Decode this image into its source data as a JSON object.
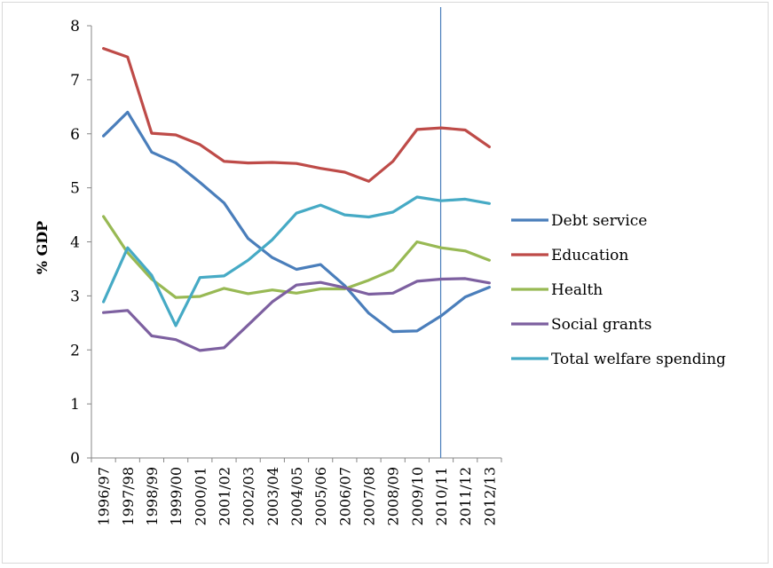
{
  "chart_data": {
    "type": "line",
    "ylabel": "% GDP",
    "xlabel": "",
    "ylim": [
      0,
      8
    ],
    "yticks": [
      "0",
      "1",
      "2",
      "3",
      "4",
      "5",
      "6",
      "7",
      "8"
    ],
    "categories": [
      "1996/97",
      "1997/98",
      "1998/99",
      "1999/00",
      "2000/01",
      "2001/02",
      "2002/03",
      "2003/04",
      "2004/05",
      "2005/06",
      "2006/07",
      "2007/08",
      "2008/09",
      "2009/10",
      "2010/11",
      "2011/12",
      "2012/13"
    ],
    "series": [
      {
        "name": "Debt service",
        "color": "#4a7ebb",
        "values": [
          5.96,
          6.4,
          5.66,
          5.46,
          5.1,
          4.72,
          4.06,
          3.71,
          3.49,
          3.58,
          3.19,
          2.68,
          2.34,
          2.35,
          2.63,
          2.98,
          3.16
        ]
      },
      {
        "name": "Education",
        "color": "#be4b48",
        "values": [
          7.58,
          7.42,
          6.01,
          5.98,
          5.8,
          5.49,
          5.46,
          5.47,
          5.45,
          5.36,
          5.29,
          5.12,
          5.49,
          6.08,
          6.11,
          6.07,
          5.76
        ]
      },
      {
        "name": "Health",
        "color": "#98b954",
        "values": [
          4.47,
          3.8,
          3.31,
          2.97,
          2.99,
          3.14,
          3.04,
          3.11,
          3.05,
          3.13,
          3.13,
          3.29,
          3.48,
          4.0,
          3.89,
          3.83,
          3.66
        ]
      },
      {
        "name": "Social grants",
        "color": "#7d60a0",
        "values": [
          2.69,
          2.73,
          2.26,
          2.19,
          1.99,
          2.04,
          2.46,
          2.89,
          3.2,
          3.25,
          3.15,
          3.03,
          3.05,
          3.27,
          3.31,
          3.32,
          3.24
        ]
      },
      {
        "name": "Total welfare spending",
        "color": "#46aac5",
        "values": [
          2.89,
          3.89,
          3.38,
          2.45,
          3.34,
          3.37,
          3.66,
          4.04,
          4.53,
          4.68,
          4.5,
          4.46,
          4.55,
          4.83,
          4.76,
          4.79,
          4.71
        ]
      }
    ],
    "reference_line": {
      "at": "2010/11",
      "color": "#4a7ebb"
    },
    "legend_position": "right",
    "grid": false
  }
}
